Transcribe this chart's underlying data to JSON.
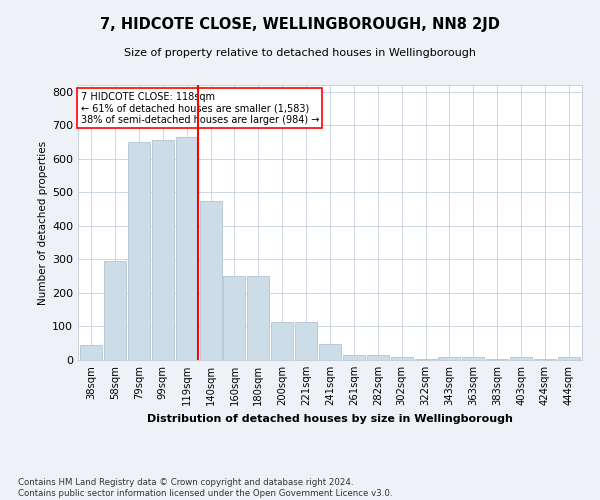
{
  "title": "7, HIDCOTE CLOSE, WELLINGBOROUGH, NN8 2JD",
  "subtitle": "Size of property relative to detached houses in Wellingborough",
  "xlabel": "Distribution of detached houses by size in Wellingborough",
  "ylabel": "Number of detached properties",
  "categories": [
    "38sqm",
    "58sqm",
    "79sqm",
    "99sqm",
    "119sqm",
    "140sqm",
    "160sqm",
    "180sqm",
    "200sqm",
    "221sqm",
    "241sqm",
    "261sqm",
    "282sqm",
    "302sqm",
    "322sqm",
    "343sqm",
    "363sqm",
    "383sqm",
    "403sqm",
    "424sqm",
    "444sqm"
  ],
  "values": [
    45,
    295,
    650,
    655,
    665,
    475,
    250,
    250,
    113,
    113,
    48,
    15,
    15,
    10,
    3,
    8,
    8,
    3,
    8,
    3,
    8
  ],
  "bar_color": "#ccdde8",
  "bar_edge_color": "#aabccc",
  "red_line_index": 4,
  "annotation_text": "7 HIDCOTE CLOSE: 118sqm\n← 61% of detached houses are smaller (1,583)\n38% of semi-detached houses are larger (984) →",
  "annotation_box_color": "white",
  "annotation_box_edge_color": "red",
  "vline_color": "red",
  "ylim": [
    0,
    820
  ],
  "yticks": [
    0,
    100,
    200,
    300,
    400,
    500,
    600,
    700,
    800
  ],
  "footnote": "Contains HM Land Registry data © Crown copyright and database right 2024.\nContains public sector information licensed under the Open Government Licence v3.0.",
  "background_color": "#eef2f7",
  "plot_background_color": "white"
}
